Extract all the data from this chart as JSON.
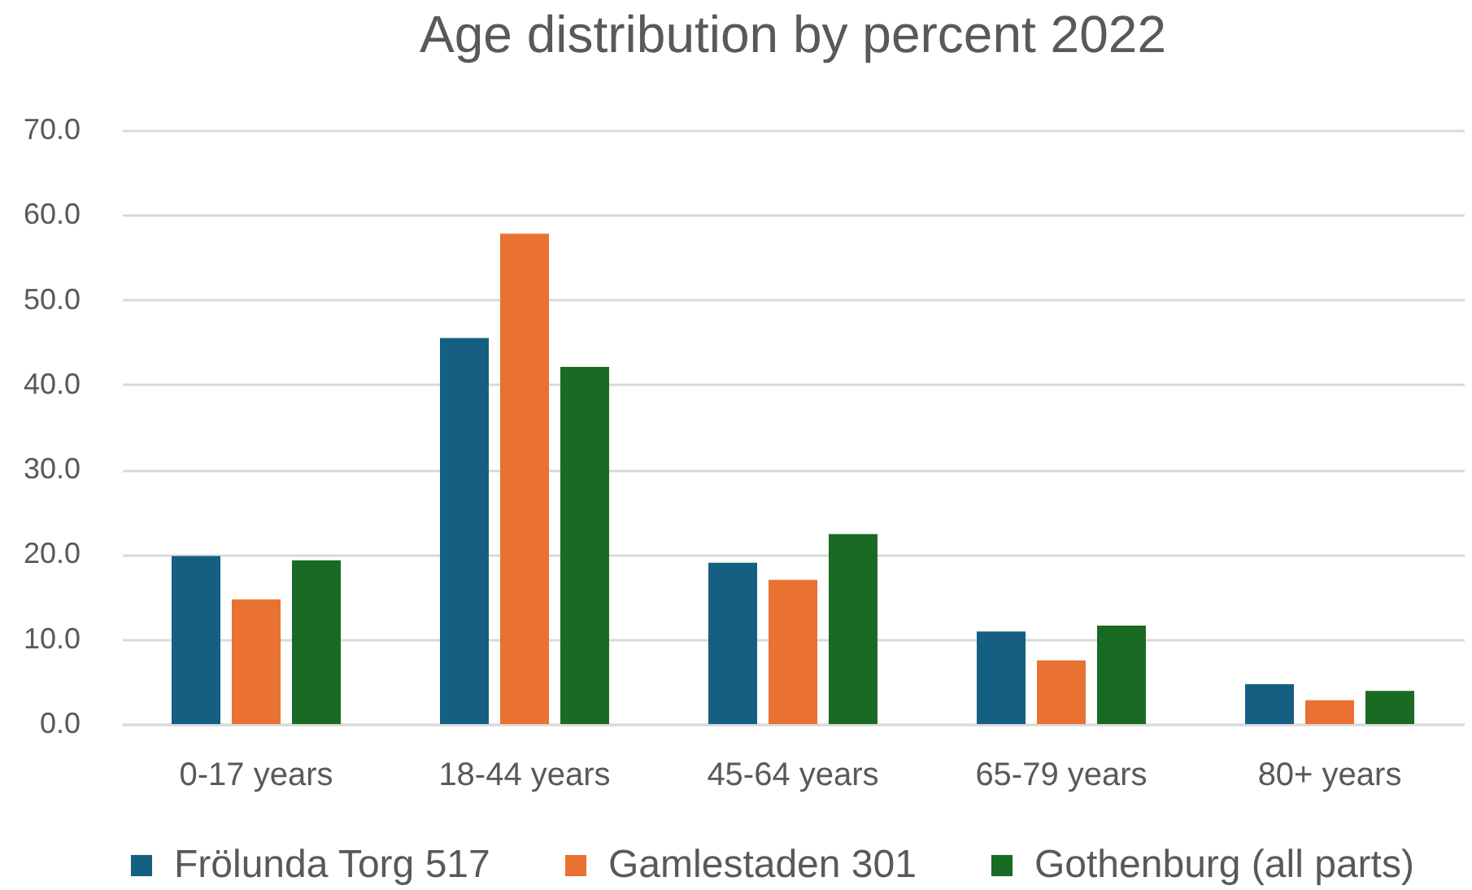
{
  "chart_data": {
    "type": "bar",
    "title": "Age distribution by percent 2022",
    "categories": [
      "0-17 years",
      "18-44 years",
      "45-64 years",
      "65-79 years",
      "80+ years"
    ],
    "series": [
      {
        "name": "Frölunda Torg 517",
        "color": "#156082",
        "values": [
          19.8,
          45.5,
          19.0,
          10.9,
          4.7
        ]
      },
      {
        "name": "Gamlestaden 301",
        "color": "#e97132",
        "values": [
          14.7,
          57.8,
          17.0,
          7.5,
          2.8
        ]
      },
      {
        "name": "Gothenburg (all parts)",
        "color": "#196b24",
        "values": [
          19.3,
          42.1,
          22.4,
          11.6,
          3.9
        ]
      }
    ],
    "ylim": [
      0,
      70
    ],
    "yticks": [
      {
        "value": 0,
        "label": "0.0"
      },
      {
        "value": 10,
        "label": "10.0"
      },
      {
        "value": 20,
        "label": "20.0"
      },
      {
        "value": 30,
        "label": "30.0"
      },
      {
        "value": 40,
        "label": "40.0"
      },
      {
        "value": 50,
        "label": "50.0"
      },
      {
        "value": 60,
        "label": "60.0"
      },
      {
        "value": 70,
        "label": "70.0"
      }
    ],
    "grid": "y",
    "legend": "bottom"
  }
}
